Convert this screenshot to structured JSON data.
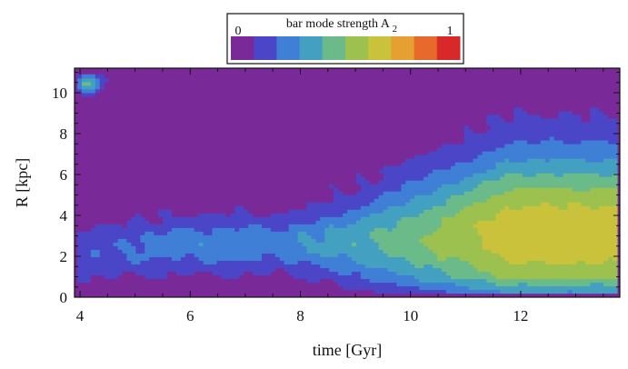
{
  "chart_data": {
    "type": "heatmap",
    "xlabel": "time [Gyr]",
    "ylabel": "R [kpc]",
    "xlim": [
      3.9,
      13.8
    ],
    "ylim": [
      0,
      11.2
    ],
    "x_ticks": [
      4,
      6,
      8,
      10,
      12
    ],
    "y_ticks": [
      0,
      2,
      4,
      6,
      8,
      10
    ],
    "grid": false,
    "colorbar": {
      "label": "bar mode strength A",
      "subscript": "2",
      "min_label": "0",
      "max_label": "1",
      "range": [
        0,
        1
      ],
      "levels": 10,
      "placement": "top-center",
      "colors": [
        "#7a2a98",
        "#4b46c8",
        "#3f7fd6",
        "#43a0c0",
        "#6bbb8a",
        "#9cc14e",
        "#c9c23a",
        "#e6a032",
        "#e86a2a",
        "#d9282a"
      ]
    },
    "data_extent": {
      "t": [
        3.95,
        13.75
      ],
      "R": [
        0.2,
        10.9
      ]
    },
    "features": {
      "bar_ridge_R_kpc": [
        [
          4.0,
          1.8
        ],
        [
          6.0,
          2.6
        ],
        [
          8.0,
          2.7
        ],
        [
          9.0,
          2.7
        ],
        [
          10.0,
          2.9
        ],
        [
          11.0,
          3.0
        ],
        [
          12.0,
          3.1
        ],
        [
          13.0,
          3.1
        ],
        [
          13.75,
          3.1
        ]
      ],
      "bar_peak": {
        "t": 12.3,
        "R": 2.8,
        "A2": 0.62
      },
      "edge_blob": {
        "t": 4.15,
        "R": 10.5,
        "A2": 0.5
      }
    }
  }
}
